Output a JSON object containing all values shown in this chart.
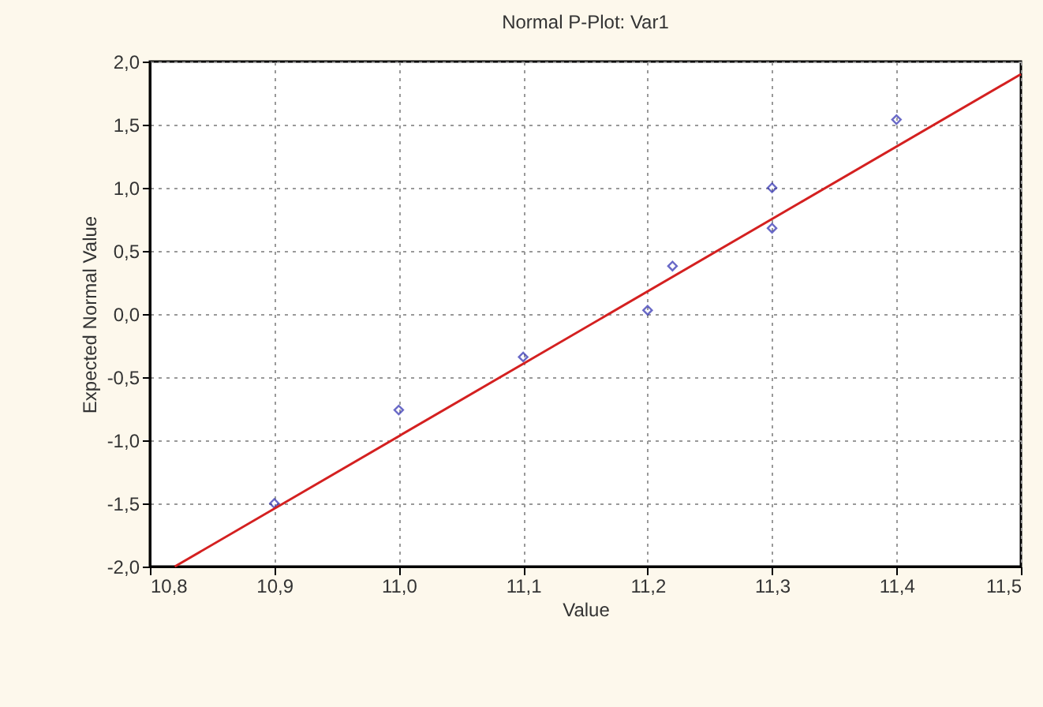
{
  "chart_data": {
    "type": "scatter",
    "title": "Normal P-Plot: Var1",
    "xlabel": "Value",
    "ylabel": "Expected Normal Value",
    "x": [
      10.9,
      11.0,
      11.1,
      11.2,
      11.22,
      11.3,
      11.3,
      11.4
    ],
    "series": [
      {
        "color": "#2b2bb0",
        "marker": "diamond",
        "values": [
          -1.5,
          -0.76,
          -0.34,
          0.03,
          0.38,
          0.68,
          1.0,
          1.54
        ]
      },
      {
        "type": "line",
        "color": "#d42020",
        "x": [
          10.82,
          11.5
        ],
        "values": [
          -2.0,
          1.9
        ],
        "marker": "none",
        "line_style": "solid"
      }
    ],
    "xlim": [
      10.8,
      11.5
    ],
    "ylim": [
      -2.0,
      2.0
    ],
    "xticks": [
      {
        "value": 10.8,
        "label": "10,8"
      },
      {
        "value": 10.9,
        "label": "10,9"
      },
      {
        "value": 11.0,
        "label": "11,0"
      },
      {
        "value": 11.1,
        "label": "11,1"
      },
      {
        "value": 11.2,
        "label": "11,2"
      },
      {
        "value": 11.3,
        "label": "11,3"
      },
      {
        "value": 11.4,
        "label": "11,4"
      },
      {
        "value": 11.5,
        "label": "11,5"
      }
    ],
    "yticks": [
      {
        "value": -2.0,
        "label": "-2,0"
      },
      {
        "value": -1.5,
        "label": "-1,5"
      },
      {
        "value": -1.0,
        "label": "-1,0"
      },
      {
        "value": -0.5,
        "label": "-0,5"
      },
      {
        "value": 0.0,
        "label": "0,0"
      },
      {
        "value": 0.5,
        "label": "0,5"
      },
      {
        "value": 1.0,
        "label": "1,0"
      },
      {
        "value": 1.5,
        "label": "1,5"
      },
      {
        "value": 2.0,
        "label": "2,0"
      }
    ],
    "grid": true
  }
}
